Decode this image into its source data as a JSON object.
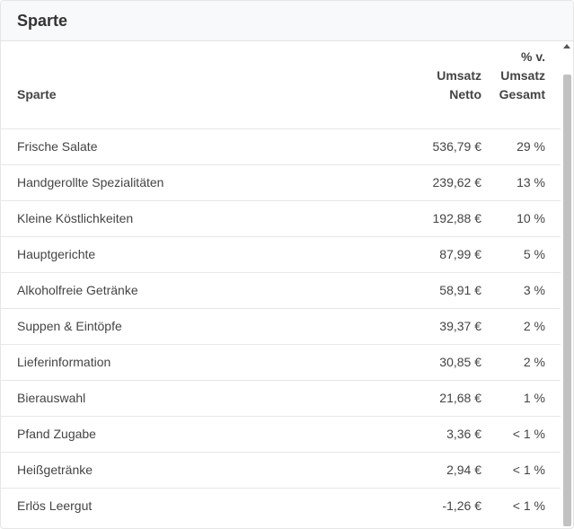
{
  "card": {
    "title": "Sparte"
  },
  "table": {
    "headers": {
      "name": "Sparte",
      "netto_line1": "Umsatz",
      "netto_line2": "Netto",
      "pct_line1": "% v.",
      "pct_line2": "Umsatz",
      "pct_line3": "Gesamt"
    },
    "rows": [
      {
        "name": "Frische Salate",
        "netto": "536,79 €",
        "pct": "29 %"
      },
      {
        "name": "Handgerollte Spezialitäten",
        "netto": "239,62 €",
        "pct": "13 %"
      },
      {
        "name": "Kleine Köstlichkeiten",
        "netto": "192,88 €",
        "pct": "10 %"
      },
      {
        "name": "Hauptgerichte",
        "netto": "87,99 €",
        "pct": "5 %"
      },
      {
        "name": "Alkoholfreie Getränke",
        "netto": "58,91 €",
        "pct": "3 %"
      },
      {
        "name": "Suppen & Eintöpfe",
        "netto": "39,37 €",
        "pct": "2 %"
      },
      {
        "name": "Lieferinformation",
        "netto": "30,85 €",
        "pct": "2 %"
      },
      {
        "name": "Bierauswahl",
        "netto": "21,68 €",
        "pct": "1 %"
      },
      {
        "name": "Pfand Zugabe",
        "netto": "3,36 €",
        "pct": "< 1 %"
      },
      {
        "name": "Heißgetränke",
        "netto": "2,94 €",
        "pct": "< 1 %"
      },
      {
        "name": "Erlös Leergut",
        "netto": "-1,26 €",
        "pct": "< 1 %"
      }
    ]
  }
}
